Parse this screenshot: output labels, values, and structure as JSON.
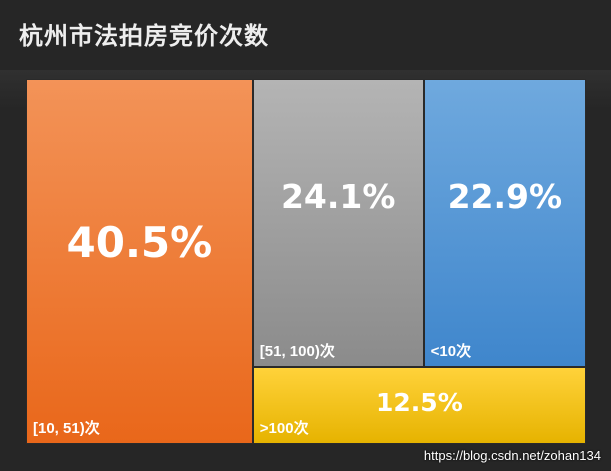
{
  "title": "杭州市法拍房竞价次数",
  "watermark": "https://blog.csdn.net/zohan134",
  "chart_data": {
    "type": "treemap",
    "title": "杭州市法拍房竞价次数",
    "unit": "%",
    "cells": [
      {
        "label": "[10, 51)次",
        "value": 40.5,
        "pct_text": "40.5%",
        "color_top": "#f39358",
        "color_bottom": "#e9671a"
      },
      {
        "label": "[51, 100)次",
        "value": 24.1,
        "pct_text": "24.1%",
        "color_top": "#b4b4b4",
        "color_bottom": "#8b8b8b"
      },
      {
        "label": "<10次",
        "value": 22.9,
        "pct_text": "22.9%",
        "color_top": "#6fa9de",
        "color_bottom": "#3f86cc"
      },
      {
        "label": ">100次",
        "value": 12.5,
        "pct_text": "12.5%",
        "color_top": "#ffd23a",
        "color_bottom": "#e6b300"
      }
    ]
  }
}
